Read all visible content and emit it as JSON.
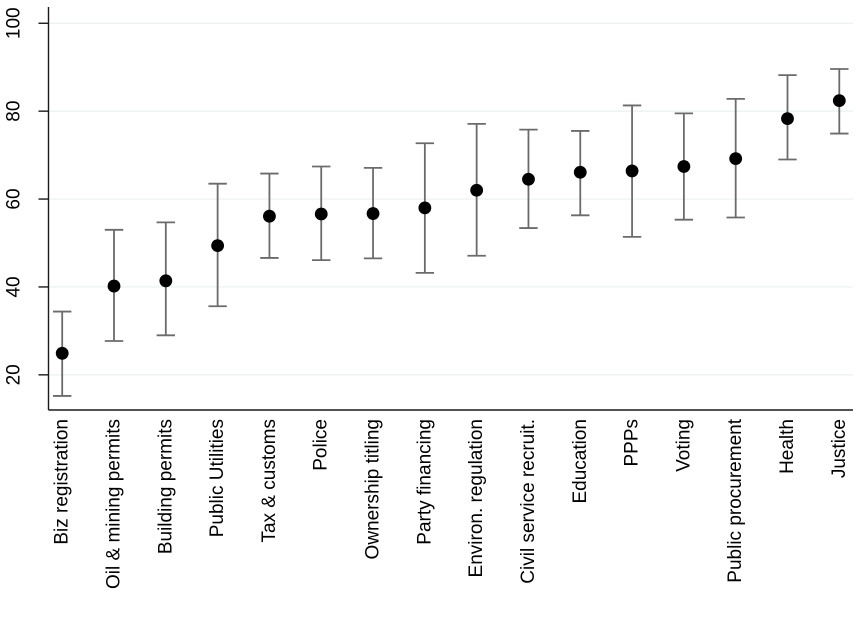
{
  "page": {
    "kind": "statistical-figure",
    "description": "Dot plot of sector estimates with confidence intervals, Stata style"
  },
  "chart_data": {
    "type": "scatter",
    "subtype": "dot-with-error-bars",
    "title": "",
    "xlabel": "",
    "ylabel": "",
    "categories": [
      "Biz registration",
      "Oil & mining permits",
      "Building permits",
      "Public Utilities",
      "Tax & customs",
      "Police",
      "Ownership titling",
      "Party financing",
      "Environ. regulation",
      "Civil service recruit.",
      "Education",
      "PPPs",
      "Voting",
      "Public procurement",
      "Health",
      "Justice"
    ],
    "series": [
      {
        "name": "estimate",
        "values": [
          24.9,
          40.2,
          41.4,
          49.4,
          56.1,
          56.6,
          56.7,
          58.0,
          62.0,
          64.5,
          66.1,
          66.4,
          67.4,
          69.2,
          78.3,
          82.4
        ]
      },
      {
        "name": "ci_lower",
        "values": [
          15.2,
          27.7,
          29.0,
          35.6,
          46.6,
          46.1,
          46.5,
          43.2,
          47.1,
          53.4,
          56.3,
          51.4,
          55.3,
          55.8,
          69.0,
          74.9
        ]
      },
      {
        "name": "ci_upper",
        "values": [
          34.4,
          53.0,
          54.7,
          63.5,
          65.8,
          67.4,
          67.1,
          72.7,
          77.1,
          75.8,
          75.5,
          81.3,
          79.5,
          82.8,
          88.2,
          89.6
        ]
      }
    ],
    "yticks": [
      20,
      40,
      60,
      80,
      100
    ],
    "ytick_labels": [
      "20",
      "40",
      "60",
      "80",
      "100"
    ],
    "ylim": [
      12,
      103.7
    ],
    "grid": "horizontal",
    "legend": "none",
    "tick_label_rotation_deg": 90,
    "colors": {
      "marker": "#000000",
      "error_bar": "#6b6b6b",
      "gridline": "#e9f0f0",
      "axis": "#1a1a1a",
      "text": "#000000",
      "background": "#ffffff"
    }
  }
}
